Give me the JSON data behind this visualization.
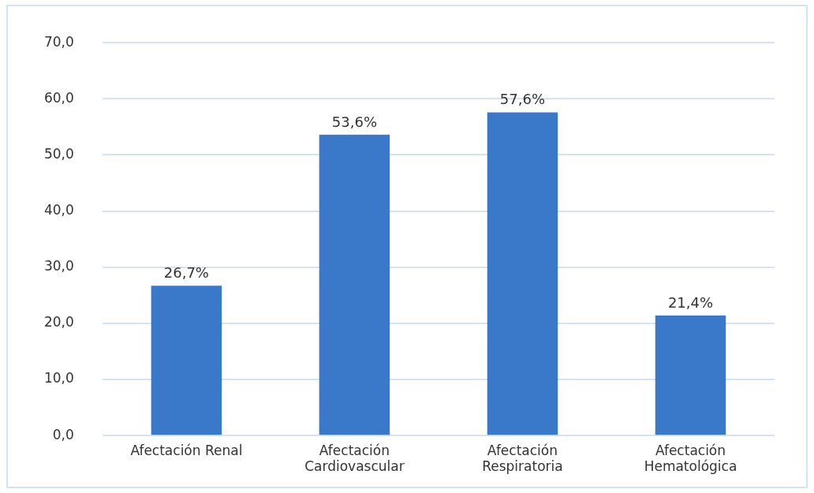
{
  "chart_data": {
    "type": "bar",
    "categories": [
      "Afectación Renal",
      "Afectación Cardiovascular",
      "Afectación Respiratoria",
      "Afectación Hematológica"
    ],
    "values": [
      26.7,
      53.6,
      57.6,
      21.4
    ],
    "value_labels": [
      "26,7%",
      "53,6%",
      "57,6%",
      "21,4%"
    ],
    "color": "#3a78c9",
    "ylim": [
      0,
      70
    ],
    "yticks": [
      {
        "value": 0,
        "label": "0,0"
      },
      {
        "value": 10,
        "label": "10,0"
      },
      {
        "value": 20,
        "label": "20,0"
      },
      {
        "value": 30,
        "label": "30,0"
      },
      {
        "value": 40,
        "label": "40,0"
      },
      {
        "value": 50,
        "label": "50,0"
      },
      {
        "value": 60,
        "label": "60,0"
      },
      {
        "value": 70,
        "label": "70,0"
      }
    ],
    "grid": "y",
    "legend": false
  }
}
